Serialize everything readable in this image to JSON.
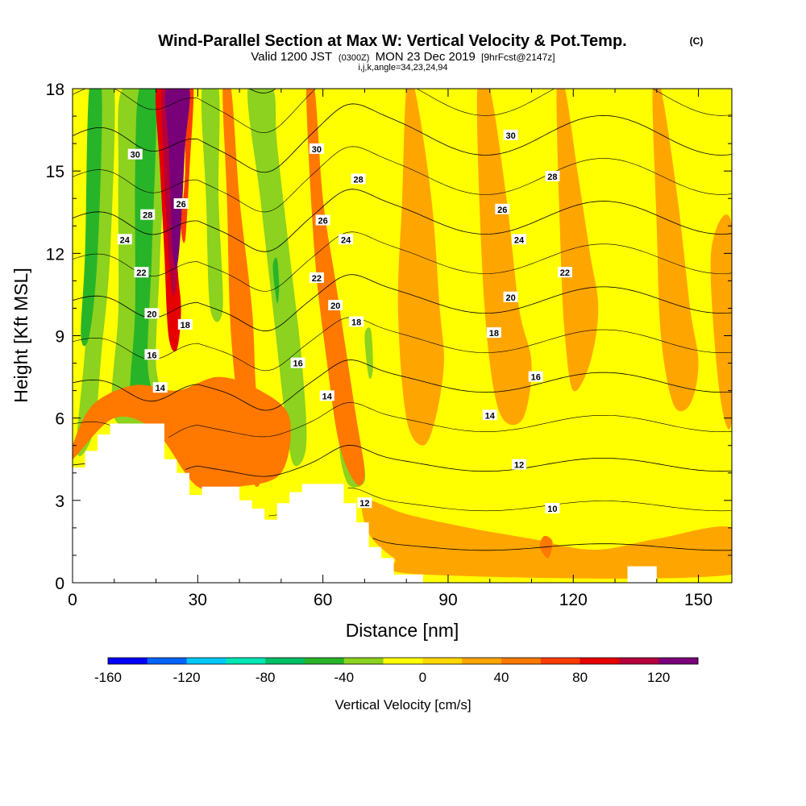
{
  "chart_data": {
    "type": "heatmap",
    "title": "Wind-Parallel Section at Max W: Vertical Velocity & Pot.Temp.",
    "title_mark": "(C)",
    "subtitle_main": "Valid 1200 JST",
    "subtitle_utc": "(0300Z)",
    "subtitle_date": "MON 23 Dec 2019",
    "subtitle_fcst": "[9hrFcst@2147z]",
    "subtitle_indices": "i,j,k,angle=34,23,24,94",
    "xlabel": "Distance [nm]",
    "ylabel": "Height [Kft MSL]",
    "xlim": [
      0,
      158
    ],
    "ylim": [
      0,
      18
    ],
    "x_ticks": [
      0,
      30,
      60,
      90,
      120,
      150
    ],
    "y_ticks": [
      0,
      3,
      6,
      9,
      12,
      15,
      18
    ],
    "x_tick_labels": [
      "0",
      "30",
      "60",
      "90",
      "120",
      "150"
    ],
    "y_tick_labels": [
      "0",
      "3",
      "6",
      "9",
      "12",
      "15",
      "18"
    ],
    "colorbar": {
      "label": "Vertical Velocity [cm/s]",
      "boundaries": [
        -160,
        -140,
        -120,
        -100,
        -80,
        -60,
        -40,
        -20,
        0,
        20,
        40,
        60,
        80,
        100,
        120,
        140
      ],
      "colors": [
        "#0000ff",
        "#0064ff",
        "#00c8ff",
        "#00e6b4",
        "#00be64",
        "#28b428",
        "#8cd21e",
        "#ffff00",
        "#ffd700",
        "#ffa500",
        "#ff7800",
        "#ff3c00",
        "#e60000",
        "#b4003c",
        "#780078"
      ],
      "tick_values": [
        -160,
        -120,
        -80,
        -40,
        0,
        40,
        80,
        120
      ],
      "tick_labels": [
        "-160",
        "-120",
        "-80",
        "-40",
        "0",
        "40",
        "80",
        "120"
      ]
    },
    "background_color": "#ffff00",
    "terrain_color": "#ffffff",
    "terrain": {
      "x": [
        0,
        3,
        3,
        6,
        6,
        9,
        9,
        22,
        22,
        25,
        25,
        28,
        28,
        31,
        31,
        40,
        40,
        43,
        43,
        46,
        46,
        49,
        49,
        52,
        52,
        55,
        55,
        65,
        65,
        68,
        68,
        71,
        71,
        74,
        74,
        77,
        77,
        84,
        84,
        158
      ],
      "h": [
        4.2,
        4.2,
        4.8,
        4.8,
        5.4,
        5.4,
        5.8,
        5.8,
        4.5,
        4.5,
        4.0,
        4.0,
        3.2,
        3.2,
        3.5,
        3.5,
        3.0,
        3.0,
        2.7,
        2.7,
        2.3,
        2.3,
        2.9,
        2.9,
        3.3,
        3.3,
        3.6,
        3.6,
        2.9,
        2.9,
        2.2,
        2.2,
        1.3,
        1.3,
        0.9,
        0.9,
        0.3,
        0.3,
        0.0,
        0.0
      ]
    },
    "terrain_bump": {
      "x0": 133,
      "x1": 140,
      "h": 0.6
    },
    "velocity_features": [
      {
        "value": -40,
        "pts": [
          [
            1,
            4.8
          ],
          [
            3,
            8.5
          ],
          [
            5,
            13
          ],
          [
            6,
            18
          ],
          [
            10,
            18
          ],
          [
            9,
            12
          ],
          [
            7,
            8.5
          ],
          [
            5,
            5.5
          ]
        ]
      },
      {
        "value": -60,
        "pts": [
          [
            2,
            9
          ],
          [
            3,
            12
          ],
          [
            4,
            18
          ],
          [
            7,
            18
          ],
          [
            6,
            12
          ],
          [
            4,
            9
          ]
        ]
      },
      {
        "value": -40,
        "pts": [
          [
            10,
            6
          ],
          [
            11,
            10
          ],
          [
            11,
            15
          ],
          [
            12,
            18
          ],
          [
            22,
            18
          ],
          [
            21,
            12
          ],
          [
            20,
            8
          ],
          [
            22,
            6
          ]
        ]
      },
      {
        "value": -60,
        "pts": [
          [
            14,
            6.5
          ],
          [
            15,
            10
          ],
          [
            15,
            15
          ],
          [
            16,
            18
          ],
          [
            20,
            18
          ],
          [
            19,
            12
          ],
          [
            18,
            8
          ],
          [
            20,
            6.2
          ]
        ]
      },
      {
        "value": -40,
        "pts": [
          [
            31,
            18
          ],
          [
            32,
            14
          ],
          [
            33,
            10
          ],
          [
            36,
            10
          ],
          [
            35,
            14
          ],
          [
            35,
            18
          ]
        ]
      },
      {
        "value": -40,
        "pts": [
          [
            42,
            18
          ],
          [
            45,
            14
          ],
          [
            48,
            10
          ],
          [
            51,
            6
          ],
          [
            53,
            4.3
          ],
          [
            56,
            5
          ],
          [
            55,
            8
          ],
          [
            52,
            12
          ],
          [
            49,
            16
          ],
          [
            48,
            18
          ]
        ]
      },
      {
        "value": -60,
        "pts": [
          [
            48,
            11.5
          ],
          [
            49,
            10.2
          ],
          [
            49.5,
            10.8
          ],
          [
            49,
            11.8
          ]
        ]
      },
      {
        "value": -40,
        "pts": [
          [
            64,
            5
          ],
          [
            67,
            5.8
          ],
          [
            69,
            5
          ],
          [
            70,
            3.7
          ],
          [
            66,
            3.6
          ]
        ]
      },
      {
        "value": -40,
        "pts": [
          [
            70,
            9
          ],
          [
            71,
            7.5
          ],
          [
            72,
            7.8
          ],
          [
            71.5,
            9.2
          ]
        ]
      },
      {
        "value": 40,
        "pts": [
          [
            0,
            5
          ],
          [
            5,
            6.5
          ],
          [
            15,
            7.2
          ],
          [
            25,
            7
          ],
          [
            35,
            7.5
          ],
          [
            45,
            7
          ],
          [
            52,
            6
          ],
          [
            50,
            4
          ],
          [
            40,
            3.5
          ],
          [
            30,
            3.5
          ],
          [
            20,
            5.5
          ],
          [
            10,
            6
          ],
          [
            0,
            4.5
          ]
        ]
      },
      {
        "value": 40,
        "pts": [
          [
            38,
            18
          ],
          [
            40,
            14
          ],
          [
            43,
            10
          ],
          [
            44,
            7
          ],
          [
            46,
            4.5
          ],
          [
            44,
            3.5
          ],
          [
            41,
            5
          ],
          [
            38,
            9
          ],
          [
            37,
            14
          ],
          [
            36,
            18
          ]
        ]
      },
      {
        "value": 40,
        "pts": [
          [
            58,
            18
          ],
          [
            60,
            14
          ],
          [
            63,
            11
          ],
          [
            66,
            8
          ],
          [
            68,
            6
          ],
          [
            70,
            4
          ],
          [
            68,
            3.6
          ],
          [
            64,
            5
          ],
          [
            61,
            8
          ],
          [
            58,
            12
          ],
          [
            56,
            18
          ]
        ]
      },
      {
        "value": 20,
        "pts": [
          [
            82,
            18
          ],
          [
            86,
            14
          ],
          [
            88,
            10
          ],
          [
            89,
            8
          ],
          [
            87,
            6
          ],
          [
            84,
            5
          ],
          [
            80,
            6
          ],
          [
            78,
            10
          ],
          [
            79,
            14
          ],
          [
            80,
            18
          ]
        ]
      },
      {
        "value": 20,
        "pts": [
          [
            100,
            18
          ],
          [
            104,
            14
          ],
          [
            107,
            10
          ],
          [
            110,
            8
          ],
          [
            108,
            6
          ],
          [
            103,
            6
          ],
          [
            100,
            8
          ],
          [
            98,
            12
          ],
          [
            97,
            18
          ]
        ]
      },
      {
        "value": 20,
        "pts": [
          [
            118,
            18
          ],
          [
            121,
            15
          ],
          [
            124,
            12
          ],
          [
            126,
            10
          ],
          [
            124,
            8
          ],
          [
            120,
            7
          ],
          [
            118,
            9
          ],
          [
            117,
            12
          ],
          [
            116,
            18
          ]
        ]
      },
      {
        "value": 20,
        "pts": [
          [
            141,
            18
          ],
          [
            145,
            14
          ],
          [
            148,
            10
          ],
          [
            150,
            8
          ],
          [
            148,
            6.5
          ],
          [
            144,
            6.5
          ],
          [
            141,
            9
          ],
          [
            140,
            13
          ],
          [
            139,
            18
          ]
        ]
      },
      {
        "value": 20,
        "pts": [
          [
            153,
            12
          ],
          [
            158,
            13
          ],
          [
            158,
            6
          ],
          [
            155,
            7
          ]
        ]
      },
      {
        "value": 20,
        "pts": [
          [
            70,
            3
          ],
          [
            80,
            2.5
          ],
          [
            95,
            2
          ],
          [
            110,
            1.6
          ],
          [
            125,
            1.2
          ],
          [
            140,
            1.6
          ],
          [
            158,
            2
          ],
          [
            158,
            0.3
          ],
          [
            84,
            0.3
          ],
          [
            77,
            0.9
          ],
          [
            71,
            1.8
          ]
        ]
      },
      {
        "value": 40,
        "pts": [
          [
            112,
            1.3
          ],
          [
            114,
            0.9
          ],
          [
            115,
            1.5
          ],
          [
            113,
            1.7
          ]
        ]
      },
      {
        "value": 80,
        "pts": [
          [
            20,
            18
          ],
          [
            24,
            18
          ],
          [
            25,
            12
          ],
          [
            26,
            10
          ],
          [
            25,
            8.5
          ],
          [
            23,
            9
          ],
          [
            22,
            12
          ],
          [
            21,
            15
          ]
        ]
      },
      {
        "value": 100,
        "pts": [
          [
            21.5,
            18
          ],
          [
            25,
            18
          ],
          [
            24.5,
            14
          ],
          [
            25,
            12
          ],
          [
            25,
            11
          ],
          [
            24,
            10.5
          ],
          [
            23,
            12
          ],
          [
            22,
            15
          ]
        ]
      },
      {
        "value": 120,
        "pts": [
          [
            22.5,
            18
          ],
          [
            28,
            18
          ],
          [
            27,
            16
          ],
          [
            26,
            13
          ],
          [
            25,
            11.5
          ],
          [
            24,
            12
          ],
          [
            23.5,
            14
          ],
          [
            23,
            16
          ]
        ]
      },
      {
        "value": 60,
        "pts": [
          [
            27,
            18
          ],
          [
            29,
            18
          ],
          [
            28,
            15
          ],
          [
            27,
            12.5
          ],
          [
            26,
            13
          ],
          [
            27,
            15
          ]
        ]
      },
      {
        "value": 120,
        "pts": [
          [
            23.5,
            18
          ],
          [
            28,
            18
          ],
          [
            27,
            16
          ],
          [
            26.2,
            14
          ],
          [
            25.3,
            12.5
          ],
          [
            24.5,
            13
          ],
          [
            24,
            15
          ]
        ]
      }
    ],
    "theta_contours": [
      {
        "level": 10,
        "label_x": 113
      },
      {
        "level": 12,
        "label_x": 107
      },
      {
        "level": 14,
        "label_x": 99
      },
      {
        "level": 16,
        "label_x": 110
      },
      {
        "level": 18,
        "label_x": 96
      },
      {
        "level": 20,
        "label_x": 100
      },
      {
        "level": 22,
        "label_x": 110
      },
      {
        "level": 24,
        "label_x": 104
      },
      {
        "level": 26,
        "label_x": 101
      },
      {
        "level": 28,
        "label_x": 108
      },
      {
        "level": 30,
        "label_x": 102
      }
    ],
    "theta_labels": [
      {
        "text": "30",
        "x": 15,
        "h": 15.6
      },
      {
        "text": "28",
        "x": 18,
        "h": 13.4
      },
      {
        "text": "26",
        "x": 26,
        "h": 13.8
      },
      {
        "text": "24",
        "x": 12.5,
        "h": 12.5
      },
      {
        "text": "22",
        "x": 16.5,
        "h": 11.3
      },
      {
        "text": "20",
        "x": 19,
        "h": 9.8
      },
      {
        "text": "18",
        "x": 27,
        "h": 9.4
      },
      {
        "text": "16",
        "x": 19,
        "h": 8.3
      },
      {
        "text": "14",
        "x": 21,
        "h": 7.1
      },
      {
        "text": "30",
        "x": 58.5,
        "h": 15.8
      },
      {
        "text": "28",
        "x": 68.5,
        "h": 14.7
      },
      {
        "text": "26",
        "x": 60,
        "h": 13.2
      },
      {
        "text": "24",
        "x": 65.5,
        "h": 12.5
      },
      {
        "text": "22",
        "x": 58.5,
        "h": 11.1
      },
      {
        "text": "20",
        "x": 63,
        "h": 10.1
      },
      {
        "text": "18",
        "x": 68,
        "h": 9.5
      },
      {
        "text": "16",
        "x": 54,
        "h": 8.0
      },
      {
        "text": "14",
        "x": 61,
        "h": 6.8
      },
      {
        "text": "12",
        "x": 70,
        "h": 2.9
      },
      {
        "text": "30",
        "x": 105,
        "h": 16.3
      },
      {
        "text": "28",
        "x": 115,
        "h": 14.8
      },
      {
        "text": "26",
        "x": 103,
        "h": 13.6
      },
      {
        "text": "24",
        "x": 107,
        "h": 12.5
      },
      {
        "text": "22",
        "x": 118,
        "h": 11.3
      },
      {
        "text": "20",
        "x": 105,
        "h": 10.4
      },
      {
        "text": "18",
        "x": 101,
        "h": 9.1
      },
      {
        "text": "16",
        "x": 111,
        "h": 7.5
      },
      {
        "text": "14",
        "x": 100,
        "h": 6.1
      },
      {
        "text": "12",
        "x": 107,
        "h": 4.3
      },
      {
        "text": "10",
        "x": 115,
        "h": 2.7
      }
    ]
  }
}
